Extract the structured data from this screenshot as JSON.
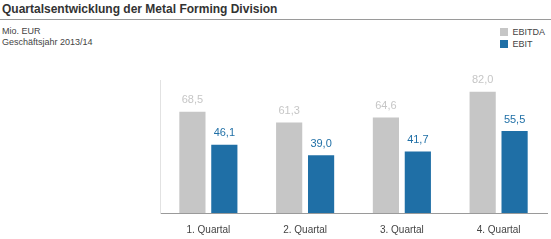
{
  "chart_data": {
    "type": "bar",
    "title": "Quartalsentwicklung der Metal Forming Division",
    "subtitle": [
      "Mio. EUR",
      "Geschäftsjahr 2013/14"
    ],
    "categories": [
      "1. Quartal",
      "2. Quartal",
      "3. Quartal",
      "4. Quartal"
    ],
    "series": [
      {
        "name": "EBITDA",
        "color": "#c6c6c6",
        "values": [
          68.5,
          61.3,
          64.6,
          82.0
        ],
        "value_labels": [
          "68,5",
          "61,3",
          "64,6",
          "82,0"
        ]
      },
      {
        "name": "EBIT",
        "color": "#1f6fa6",
        "values": [
          46.1,
          39.0,
          41.7,
          55.5
        ],
        "value_labels": [
          "46,1",
          "39,0",
          "41,7",
          "55,5"
        ]
      }
    ],
    "ylim": [
      0,
      90
    ],
    "tick_labels": "x",
    "grid": false,
    "legend": "top-right",
    "data_labels": true
  }
}
